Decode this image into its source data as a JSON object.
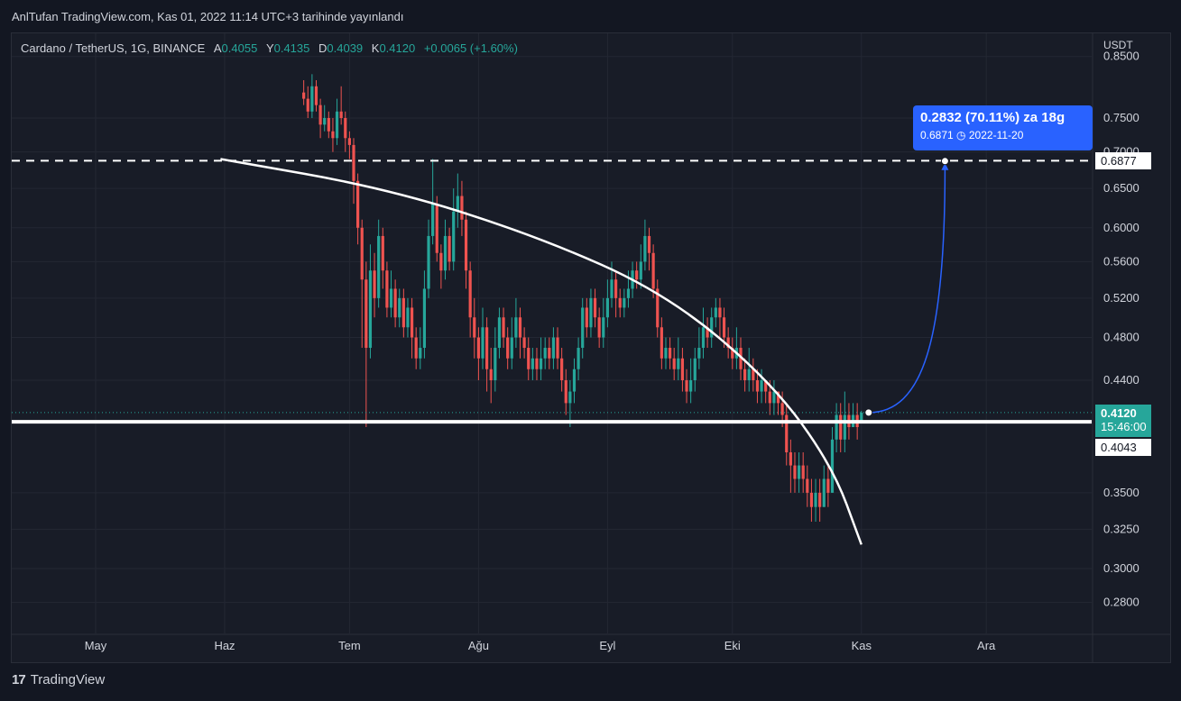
{
  "header": {
    "published": "AnlTufan TradingView.com, Kas 01, 2022 11:14 UTC+3 tarihinde yayınlandı"
  },
  "legend": {
    "symbol": "Cardano / TetherUS, 1G, BINANCE",
    "open_label": "A",
    "open": "0.4055",
    "high_label": "Y",
    "high": "0.4135",
    "low_label": "D",
    "low": "0.4039",
    "close_label": "K",
    "close": "0.4120",
    "change": "+0.0065 (+1.60%)"
  },
  "axis": {
    "unit": "USDT"
  },
  "price_tags": {
    "last_price": "0.4120",
    "countdown": "15:46:00",
    "resistance": "0.6877",
    "support": "0.4043"
  },
  "projection": {
    "line1": "0.2832 (70.11%) za 18g",
    "line2_price": "0.6871",
    "line2_date": "2022-11-20"
  },
  "footer": {
    "brand": "TradingView",
    "logo_text": "17"
  },
  "colors": {
    "background": "#131722",
    "up": "#26a69a",
    "down": "#ef5350",
    "callout": "#2962ff",
    "lines": "#ffffff",
    "text": "#d1d4dc"
  },
  "chart_data": {
    "type": "candlestick",
    "y_scale": "log",
    "y_ticks": [
      "0.8500",
      "0.7500",
      "0.7000",
      "0.6500",
      "0.6000",
      "0.5600",
      "0.5200",
      "0.4800",
      "0.4400",
      "0.3500",
      "0.3250",
      "0.3000",
      "0.2800"
    ],
    "y_tick_values": [
      0.85,
      0.75,
      0.7,
      0.65,
      0.6,
      0.56,
      0.52,
      0.48,
      0.44,
      0.35,
      0.325,
      0.3,
      0.28
    ],
    "x_ticks": [
      "May",
      "Haz",
      "Tem",
      "Ağu",
      "Eyl",
      "Eki",
      "Kas",
      "Ara"
    ],
    "x_tick_dates": [
      "2022-05-01",
      "2022-06-01",
      "2022-07-01",
      "2022-08-01",
      "2022-09-01",
      "2022-10-01",
      "2022-11-01",
      "2022-12-01"
    ],
    "horizontal_lines": [
      {
        "price": 0.6877,
        "style": "dashed"
      },
      {
        "price": 0.4043,
        "style": "solid"
      }
    ],
    "trend_curve": [
      {
        "date": "2022-05-31",
        "price": 0.69
      },
      {
        "date": "2022-07-10",
        "price": 0.65
      },
      {
        "date": "2022-08-15",
        "price": 0.59
      },
      {
        "date": "2022-09-15",
        "price": 0.525
      },
      {
        "date": "2022-10-10",
        "price": 0.44
      },
      {
        "date": "2022-10-25",
        "price": 0.37
      },
      {
        "date": "2022-11-01",
        "price": 0.315
      }
    ],
    "projection_path": [
      {
        "date": "2022-11-01",
        "price": 0.412
      },
      {
        "date": "2022-11-20",
        "price": 0.6871
      }
    ],
    "candles": [
      [
        0.79,
        0.78,
        0.81,
        0.77
      ],
      [
        0.78,
        0.76,
        0.8,
        0.75
      ],
      [
        0.76,
        0.8,
        0.82,
        0.75
      ],
      [
        0.8,
        0.77,
        0.81,
        0.76
      ],
      [
        0.77,
        0.74,
        0.78,
        0.72
      ],
      [
        0.74,
        0.75,
        0.77,
        0.73
      ],
      [
        0.75,
        0.73,
        0.76,
        0.72
      ],
      [
        0.73,
        0.72,
        0.75,
        0.7
      ],
      [
        0.72,
        0.76,
        0.78,
        0.71
      ],
      [
        0.76,
        0.75,
        0.8,
        0.74
      ],
      [
        0.75,
        0.72,
        0.76,
        0.7
      ],
      [
        0.72,
        0.71,
        0.73,
        0.69
      ],
      [
        0.71,
        0.66,
        0.72,
        0.63
      ],
      [
        0.66,
        0.6,
        0.67,
        0.58
      ],
      [
        0.6,
        0.54,
        0.61,
        0.47
      ],
      [
        0.54,
        0.47,
        0.56,
        0.4
      ],
      [
        0.47,
        0.55,
        0.58,
        0.46
      ],
      [
        0.55,
        0.52,
        0.57,
        0.5
      ],
      [
        0.52,
        0.59,
        0.61,
        0.51
      ],
      [
        0.59,
        0.55,
        0.6,
        0.53
      ],
      [
        0.55,
        0.51,
        0.56,
        0.5
      ],
      [
        0.51,
        0.53,
        0.55,
        0.5
      ],
      [
        0.53,
        0.5,
        0.54,
        0.49
      ],
      [
        0.5,
        0.52,
        0.53,
        0.49
      ],
      [
        0.52,
        0.49,
        0.53,
        0.48
      ],
      [
        0.49,
        0.51,
        0.52,
        0.48
      ],
      [
        0.51,
        0.48,
        0.52,
        0.46
      ],
      [
        0.48,
        0.46,
        0.49,
        0.45
      ],
      [
        0.46,
        0.47,
        0.49,
        0.45
      ],
      [
        0.47,
        0.53,
        0.55,
        0.46
      ],
      [
        0.53,
        0.59,
        0.61,
        0.52
      ],
      [
        0.59,
        0.63,
        0.69,
        0.58
      ],
      [
        0.63,
        0.57,
        0.64,
        0.56
      ],
      [
        0.57,
        0.55,
        0.58,
        0.53
      ],
      [
        0.55,
        0.59,
        0.61,
        0.54
      ],
      [
        0.59,
        0.56,
        0.6,
        0.55
      ],
      [
        0.56,
        0.62,
        0.65,
        0.55
      ],
      [
        0.62,
        0.64,
        0.67,
        0.6
      ],
      [
        0.64,
        0.61,
        0.66,
        0.59
      ],
      [
        0.61,
        0.55,
        0.62,
        0.53
      ],
      [
        0.55,
        0.5,
        0.56,
        0.48
      ],
      [
        0.5,
        0.48,
        0.52,
        0.46
      ],
      [
        0.48,
        0.46,
        0.49,
        0.44
      ],
      [
        0.46,
        0.49,
        0.51,
        0.45
      ],
      [
        0.49,
        0.45,
        0.5,
        0.43
      ],
      [
        0.45,
        0.44,
        0.47,
        0.42
      ],
      [
        0.44,
        0.47,
        0.49,
        0.43
      ],
      [
        0.47,
        0.5,
        0.51,
        0.46
      ],
      [
        0.5,
        0.48,
        0.51,
        0.47
      ],
      [
        0.48,
        0.46,
        0.49,
        0.45
      ],
      [
        0.46,
        0.48,
        0.5,
        0.45
      ],
      [
        0.48,
        0.5,
        0.52,
        0.47
      ],
      [
        0.5,
        0.48,
        0.51,
        0.46
      ],
      [
        0.48,
        0.47,
        0.49,
        0.46
      ],
      [
        0.47,
        0.45,
        0.48,
        0.44
      ],
      [
        0.45,
        0.46,
        0.47,
        0.44
      ],
      [
        0.46,
        0.45,
        0.47,
        0.44
      ],
      [
        0.45,
        0.46,
        0.48,
        0.44
      ],
      [
        0.46,
        0.47,
        0.48,
        0.45
      ],
      [
        0.47,
        0.46,
        0.48,
        0.45
      ],
      [
        0.46,
        0.48,
        0.49,
        0.45
      ],
      [
        0.48,
        0.46,
        0.49,
        0.45
      ],
      [
        0.46,
        0.44,
        0.47,
        0.43
      ],
      [
        0.44,
        0.42,
        0.45,
        0.41
      ],
      [
        0.42,
        0.43,
        0.44,
        0.4
      ],
      [
        0.43,
        0.45,
        0.46,
        0.42
      ],
      [
        0.45,
        0.47,
        0.48,
        0.44
      ],
      [
        0.47,
        0.51,
        0.52,
        0.46
      ],
      [
        0.51,
        0.49,
        0.52,
        0.48
      ],
      [
        0.49,
        0.52,
        0.53,
        0.48
      ],
      [
        0.52,
        0.5,
        0.53,
        0.49
      ],
      [
        0.5,
        0.48,
        0.51,
        0.47
      ],
      [
        0.48,
        0.5,
        0.52,
        0.47
      ],
      [
        0.5,
        0.52,
        0.54,
        0.49
      ],
      [
        0.52,
        0.54,
        0.56,
        0.51
      ],
      [
        0.54,
        0.52,
        0.55,
        0.5
      ],
      [
        0.52,
        0.51,
        0.53,
        0.5
      ],
      [
        0.51,
        0.52,
        0.53,
        0.5
      ],
      [
        0.52,
        0.53,
        0.55,
        0.51
      ],
      [
        0.53,
        0.55,
        0.56,
        0.52
      ],
      [
        0.55,
        0.54,
        0.56,
        0.53
      ],
      [
        0.54,
        0.56,
        0.58,
        0.53
      ],
      [
        0.56,
        0.59,
        0.61,
        0.55
      ],
      [
        0.59,
        0.57,
        0.6,
        0.55
      ],
      [
        0.57,
        0.53,
        0.58,
        0.52
      ],
      [
        0.53,
        0.49,
        0.54,
        0.48
      ],
      [
        0.49,
        0.46,
        0.5,
        0.45
      ],
      [
        0.46,
        0.47,
        0.48,
        0.45
      ],
      [
        0.47,
        0.46,
        0.48,
        0.45
      ],
      [
        0.46,
        0.45,
        0.47,
        0.44
      ],
      [
        0.45,
        0.46,
        0.48,
        0.44
      ],
      [
        0.46,
        0.44,
        0.47,
        0.43
      ],
      [
        0.44,
        0.43,
        0.45,
        0.42
      ],
      [
        0.43,
        0.44,
        0.46,
        0.42
      ],
      [
        0.44,
        0.46,
        0.47,
        0.43
      ],
      [
        0.46,
        0.47,
        0.49,
        0.45
      ],
      [
        0.47,
        0.49,
        0.51,
        0.46
      ],
      [
        0.49,
        0.48,
        0.5,
        0.47
      ],
      [
        0.48,
        0.5,
        0.51,
        0.47
      ],
      [
        0.5,
        0.51,
        0.52,
        0.49
      ],
      [
        0.51,
        0.5,
        0.52,
        0.48
      ],
      [
        0.5,
        0.48,
        0.51,
        0.47
      ],
      [
        0.48,
        0.47,
        0.49,
        0.46
      ],
      [
        0.47,
        0.46,
        0.48,
        0.45
      ],
      [
        0.46,
        0.47,
        0.49,
        0.45
      ],
      [
        0.47,
        0.45,
        0.48,
        0.44
      ],
      [
        0.45,
        0.44,
        0.46,
        0.43
      ],
      [
        0.44,
        0.45,
        0.47,
        0.43
      ],
      [
        0.45,
        0.44,
        0.46,
        0.43
      ],
      [
        0.44,
        0.43,
        0.45,
        0.42
      ],
      [
        0.43,
        0.44,
        0.45,
        0.42
      ],
      [
        0.44,
        0.43,
        0.44,
        0.42
      ],
      [
        0.43,
        0.42,
        0.44,
        0.41
      ],
      [
        0.42,
        0.43,
        0.44,
        0.41
      ],
      [
        0.43,
        0.42,
        0.43,
        0.41
      ],
      [
        0.42,
        0.41,
        0.43,
        0.4
      ],
      [
        0.41,
        0.38,
        0.42,
        0.37
      ],
      [
        0.38,
        0.37,
        0.39,
        0.35
      ],
      [
        0.37,
        0.36,
        0.38,
        0.35
      ],
      [
        0.36,
        0.37,
        0.38,
        0.35
      ],
      [
        0.37,
        0.36,
        0.38,
        0.35
      ],
      [
        0.36,
        0.35,
        0.37,
        0.34
      ],
      [
        0.35,
        0.34,
        0.36,
        0.33
      ],
      [
        0.34,
        0.35,
        0.36,
        0.33
      ],
      [
        0.35,
        0.34,
        0.36,
        0.33
      ],
      [
        0.34,
        0.36,
        0.37,
        0.34
      ],
      [
        0.36,
        0.35,
        0.37,
        0.34
      ],
      [
        0.35,
        0.39,
        0.4,
        0.35
      ],
      [
        0.39,
        0.41,
        0.42,
        0.38
      ],
      [
        0.41,
        0.39,
        0.42,
        0.38
      ],
      [
        0.39,
        0.41,
        0.43,
        0.38
      ],
      [
        0.41,
        0.4,
        0.42,
        0.39
      ],
      [
        0.4,
        0.41,
        0.42,
        0.4
      ],
      [
        0.41,
        0.4,
        0.42,
        0.39
      ],
      [
        0.4055,
        0.412,
        0.4135,
        0.4039
      ]
    ],
    "candle_format": "[open, close, high, low]"
  }
}
